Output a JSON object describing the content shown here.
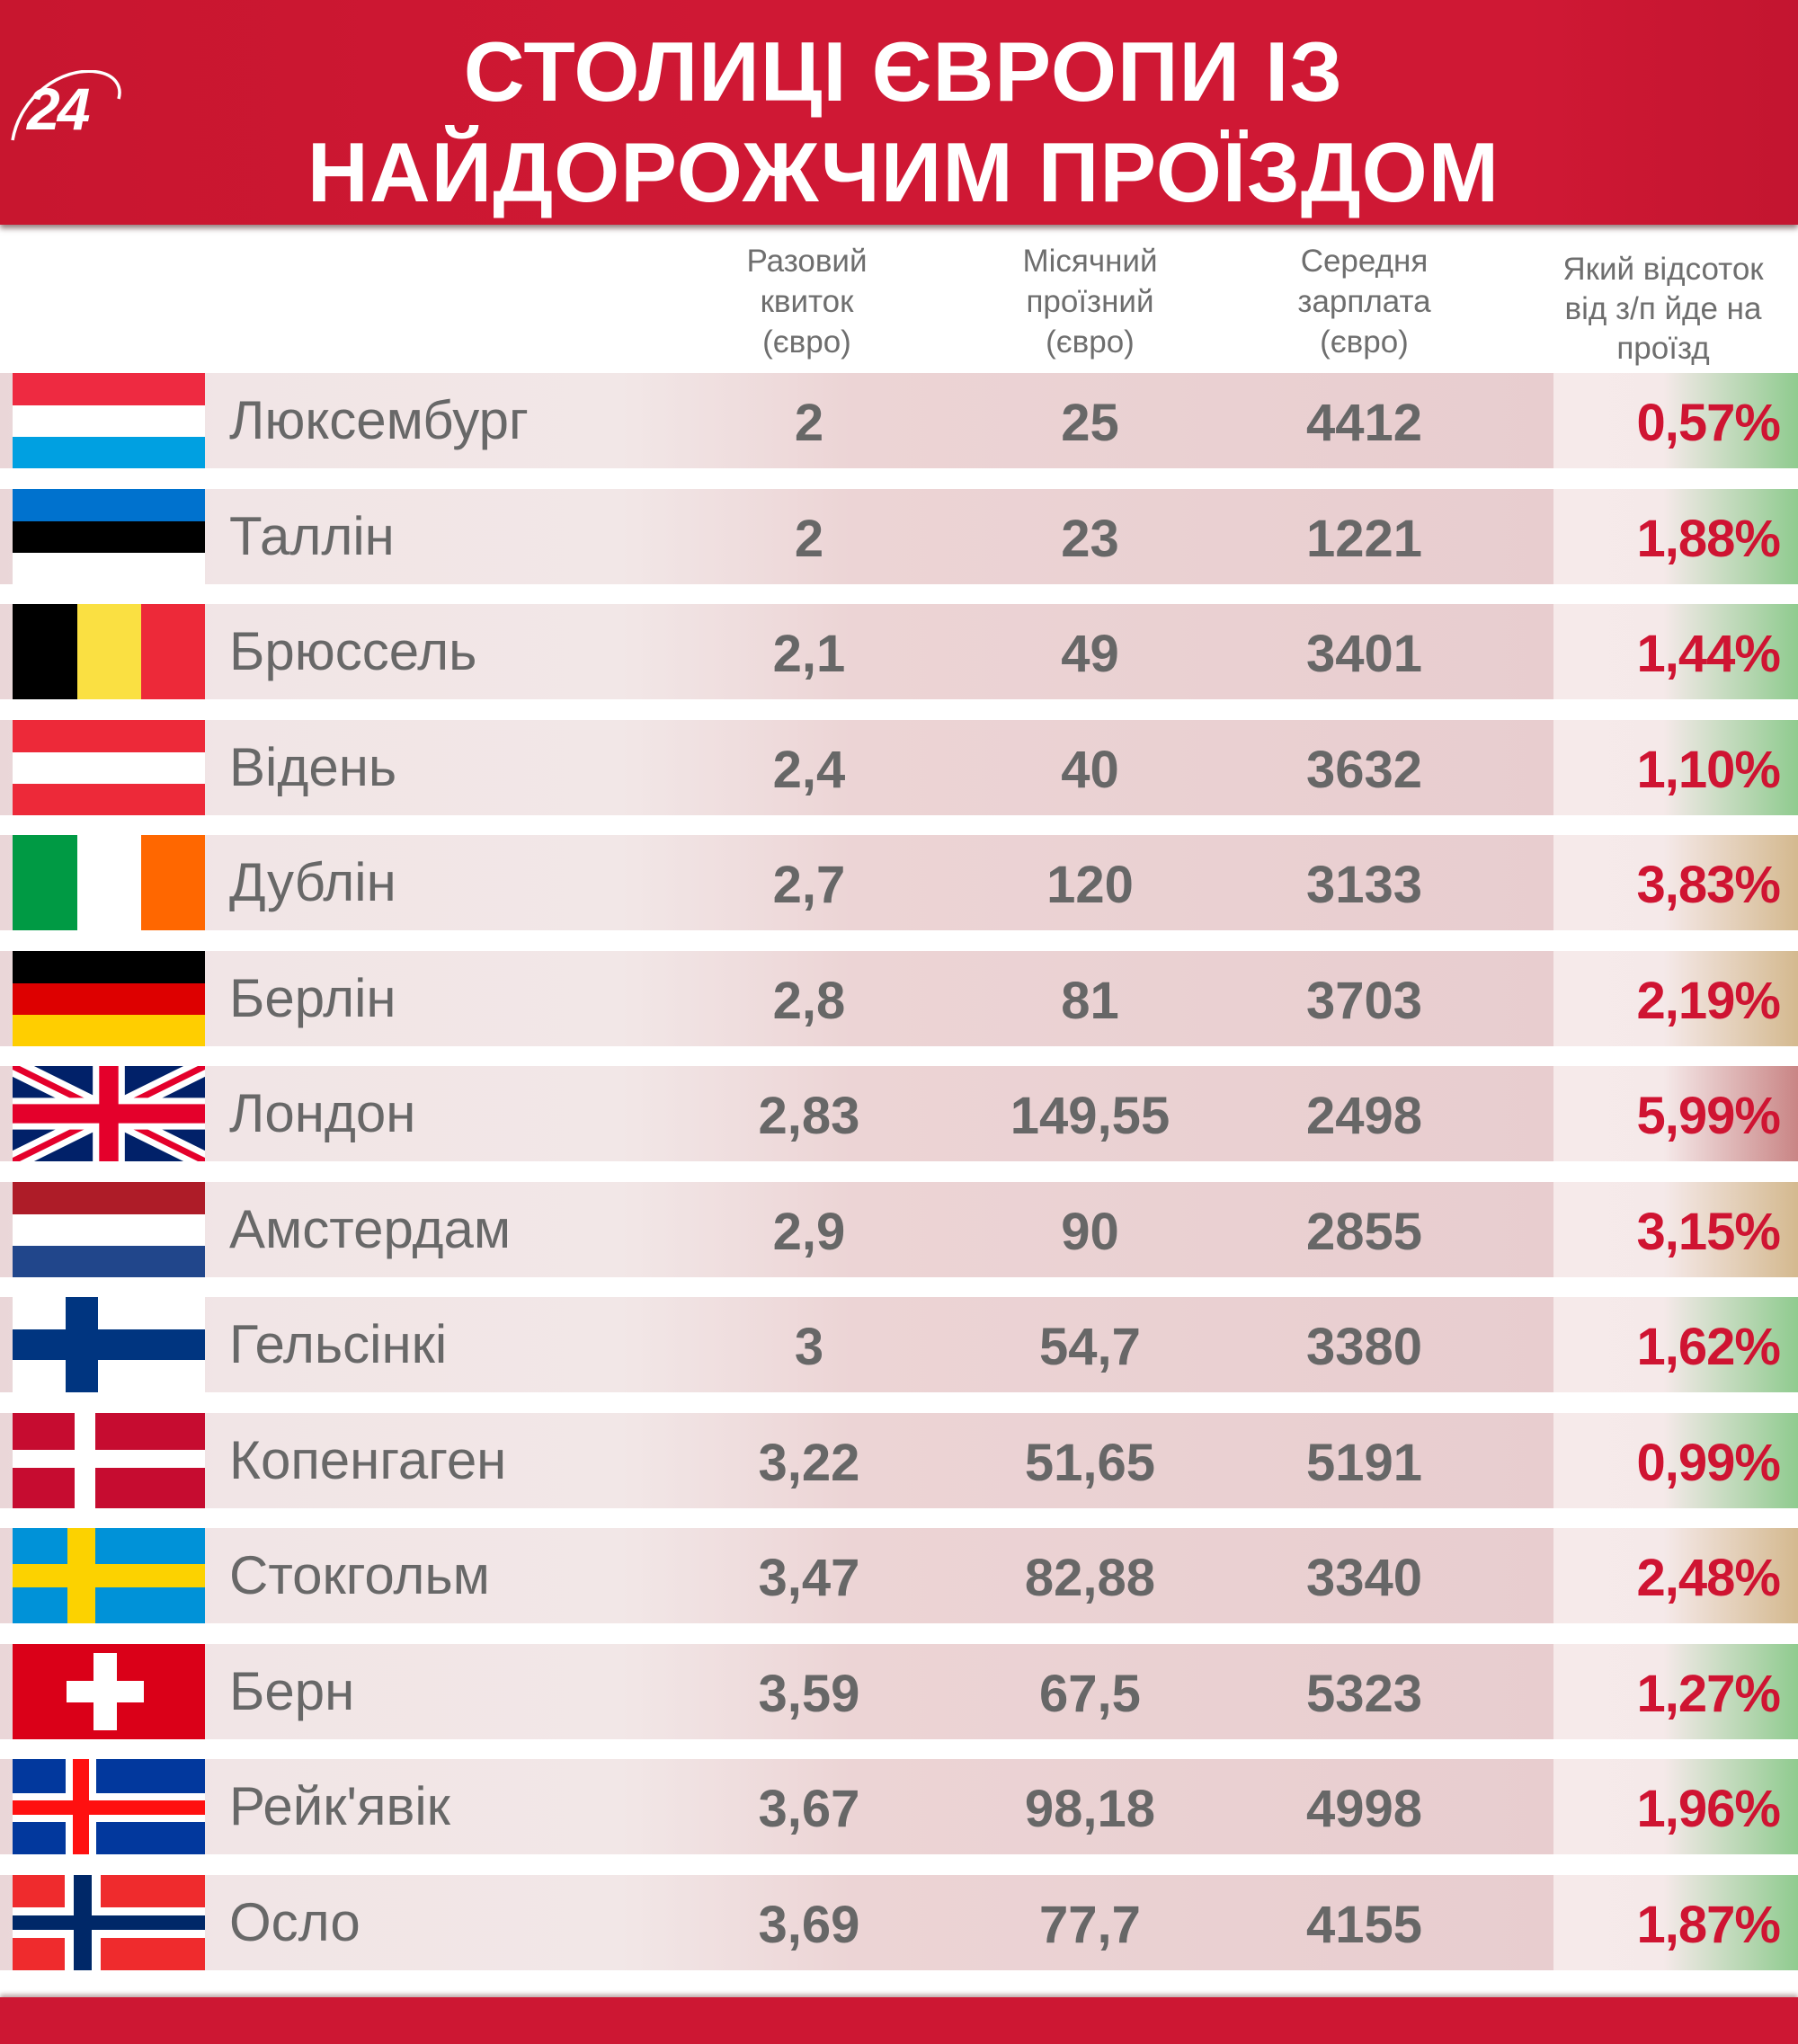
{
  "header": {
    "logo_text": "24",
    "title_line1": "СТОЛИЦІ ЄВРОПИ ІЗ",
    "title_line2": "НАЙДОРОЖЧИМ ПРОЇЗДОМ",
    "background_color": "#cf1834"
  },
  "columns": {
    "single_ticket": [
      "Разовий",
      "квиток",
      "(євро)"
    ],
    "monthly_pass": [
      "Місячний",
      "проїзний",
      "(євро)"
    ],
    "avg_salary": [
      "Середня",
      "зарплата",
      "(євро)"
    ],
    "salary_share": [
      "Який відсоток",
      "від з/п йде на",
      "проїзд"
    ]
  },
  "colors": {
    "number_text": "#676767",
    "percent_text": "#cf1432",
    "low_share_edge": "#8fcb8f",
    "mid_share_edge": "#d4b98f",
    "high_share_edge": "#c98585"
  },
  "rows": [
    {
      "city": "Люксембург",
      "flag": "luxembourg-flag",
      "single": "2",
      "monthly": "25",
      "salary": "4412",
      "share": "0,57%",
      "tone": "low"
    },
    {
      "city": "Таллін",
      "flag": "estonia-flag",
      "single": "2",
      "monthly": "23",
      "salary": "1221",
      "share": "1,88%",
      "tone": "low"
    },
    {
      "city": "Брюссель",
      "flag": "belgium-flag",
      "single": "2,1",
      "monthly": "49",
      "salary": "3401",
      "share": "1,44%",
      "tone": "low"
    },
    {
      "city": "Відень",
      "flag": "austria-flag",
      "single": "2,4",
      "monthly": "40",
      "salary": "3632",
      "share": "1,10%",
      "tone": "low"
    },
    {
      "city": "Дублін",
      "flag": "ireland-flag",
      "single": "2,7",
      "monthly": "120",
      "salary": "3133",
      "share": "3,83%",
      "tone": "mid"
    },
    {
      "city": "Берлін",
      "flag": "germany-flag",
      "single": "2,8",
      "monthly": "81",
      "salary": "3703",
      "share": "2,19%",
      "tone": "mid"
    },
    {
      "city": "Лондон",
      "flag": "uk-flag",
      "single": "2,83",
      "monthly": "149,55",
      "salary": "2498",
      "share": "5,99%",
      "tone": "high"
    },
    {
      "city": "Амстердам",
      "flag": "netherlands-flag",
      "single": "2,9",
      "monthly": "90",
      "salary": "2855",
      "share": "3,15%",
      "tone": "mid"
    },
    {
      "city": "Гельсінкі",
      "flag": "finland-flag",
      "single": "3",
      "monthly": "54,7",
      "salary": "3380",
      "share": "1,62%",
      "tone": "low"
    },
    {
      "city": "Копенгаген",
      "flag": "denmark-flag",
      "single": "3,22",
      "monthly": "51,65",
      "salary": "5191",
      "share": "0,99%",
      "tone": "low"
    },
    {
      "city": "Стокгольм",
      "flag": "sweden-flag",
      "single": "3,47",
      "monthly": "82,88",
      "salary": "3340",
      "share": "2,48%",
      "tone": "mid"
    },
    {
      "city": "Берн",
      "flag": "switzerland-flag",
      "single": "3,59",
      "monthly": "67,5",
      "salary": "5323",
      "share": "1,27%",
      "tone": "low"
    },
    {
      "city": "Рейк'явік",
      "flag": "iceland-flag",
      "single": "3,67",
      "monthly": "98,18",
      "salary": "4998",
      "share": "1,96%",
      "tone": "low"
    },
    {
      "city": "Осло",
      "flag": "norway-flag",
      "single": "3,69",
      "monthly": "77,7",
      "salary": "4155",
      "share": "1,87%",
      "tone": "low"
    }
  ]
}
